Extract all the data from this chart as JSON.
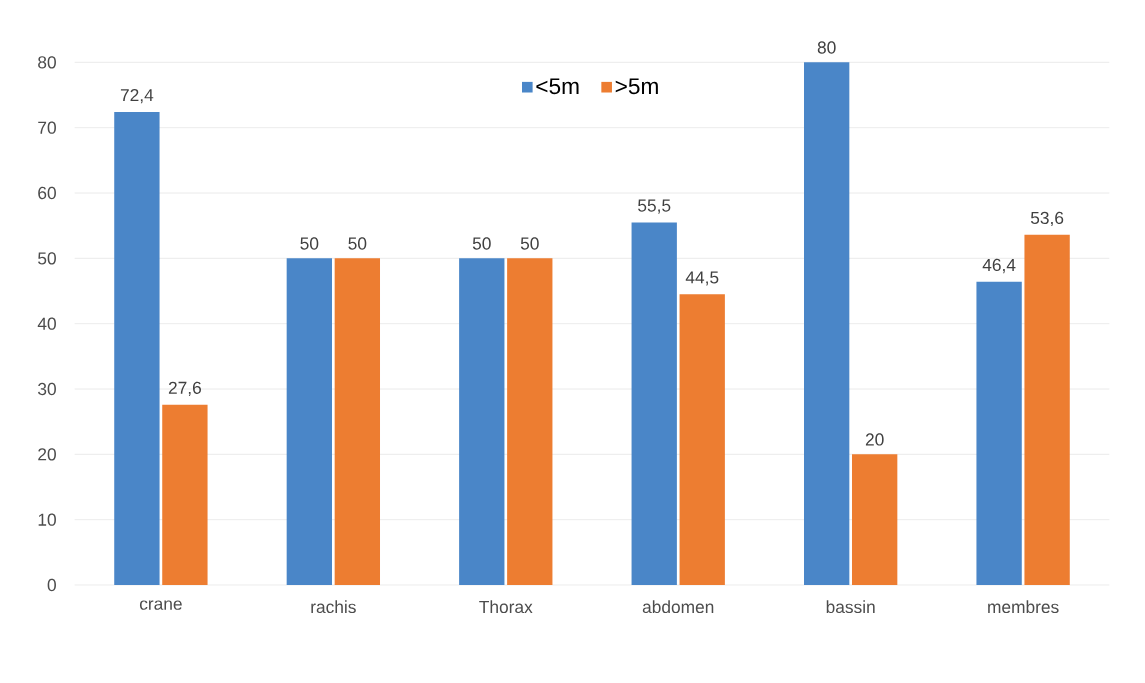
{
  "chart_data": {
    "type": "bar",
    "categories": [
      "crane",
      "rachis",
      "Thorax",
      "abdomen",
      "bassin",
      "membres"
    ],
    "series": [
      {
        "name": "<5m",
        "color": "#4a86c8",
        "values": [
          72.4,
          50,
          50,
          55.5,
          80,
          46.4
        ],
        "value_labels": [
          "72,4",
          "50",
          "50",
          "55,5",
          "80",
          "46,4"
        ]
      },
      {
        "name": ">5m",
        "color": "#ed7d31",
        "values": [
          27.6,
          50,
          50,
          44.5,
          20,
          53.6
        ],
        "value_labels": [
          "27,6",
          "50",
          "50",
          "44,5",
          "20",
          "53,6"
        ]
      }
    ],
    "ylim": [
      0,
      80
    ],
    "yticks": [
      0,
      10,
      20,
      30,
      40,
      50,
      60,
      70,
      80
    ],
    "grid": "y",
    "legend": "top"
  }
}
